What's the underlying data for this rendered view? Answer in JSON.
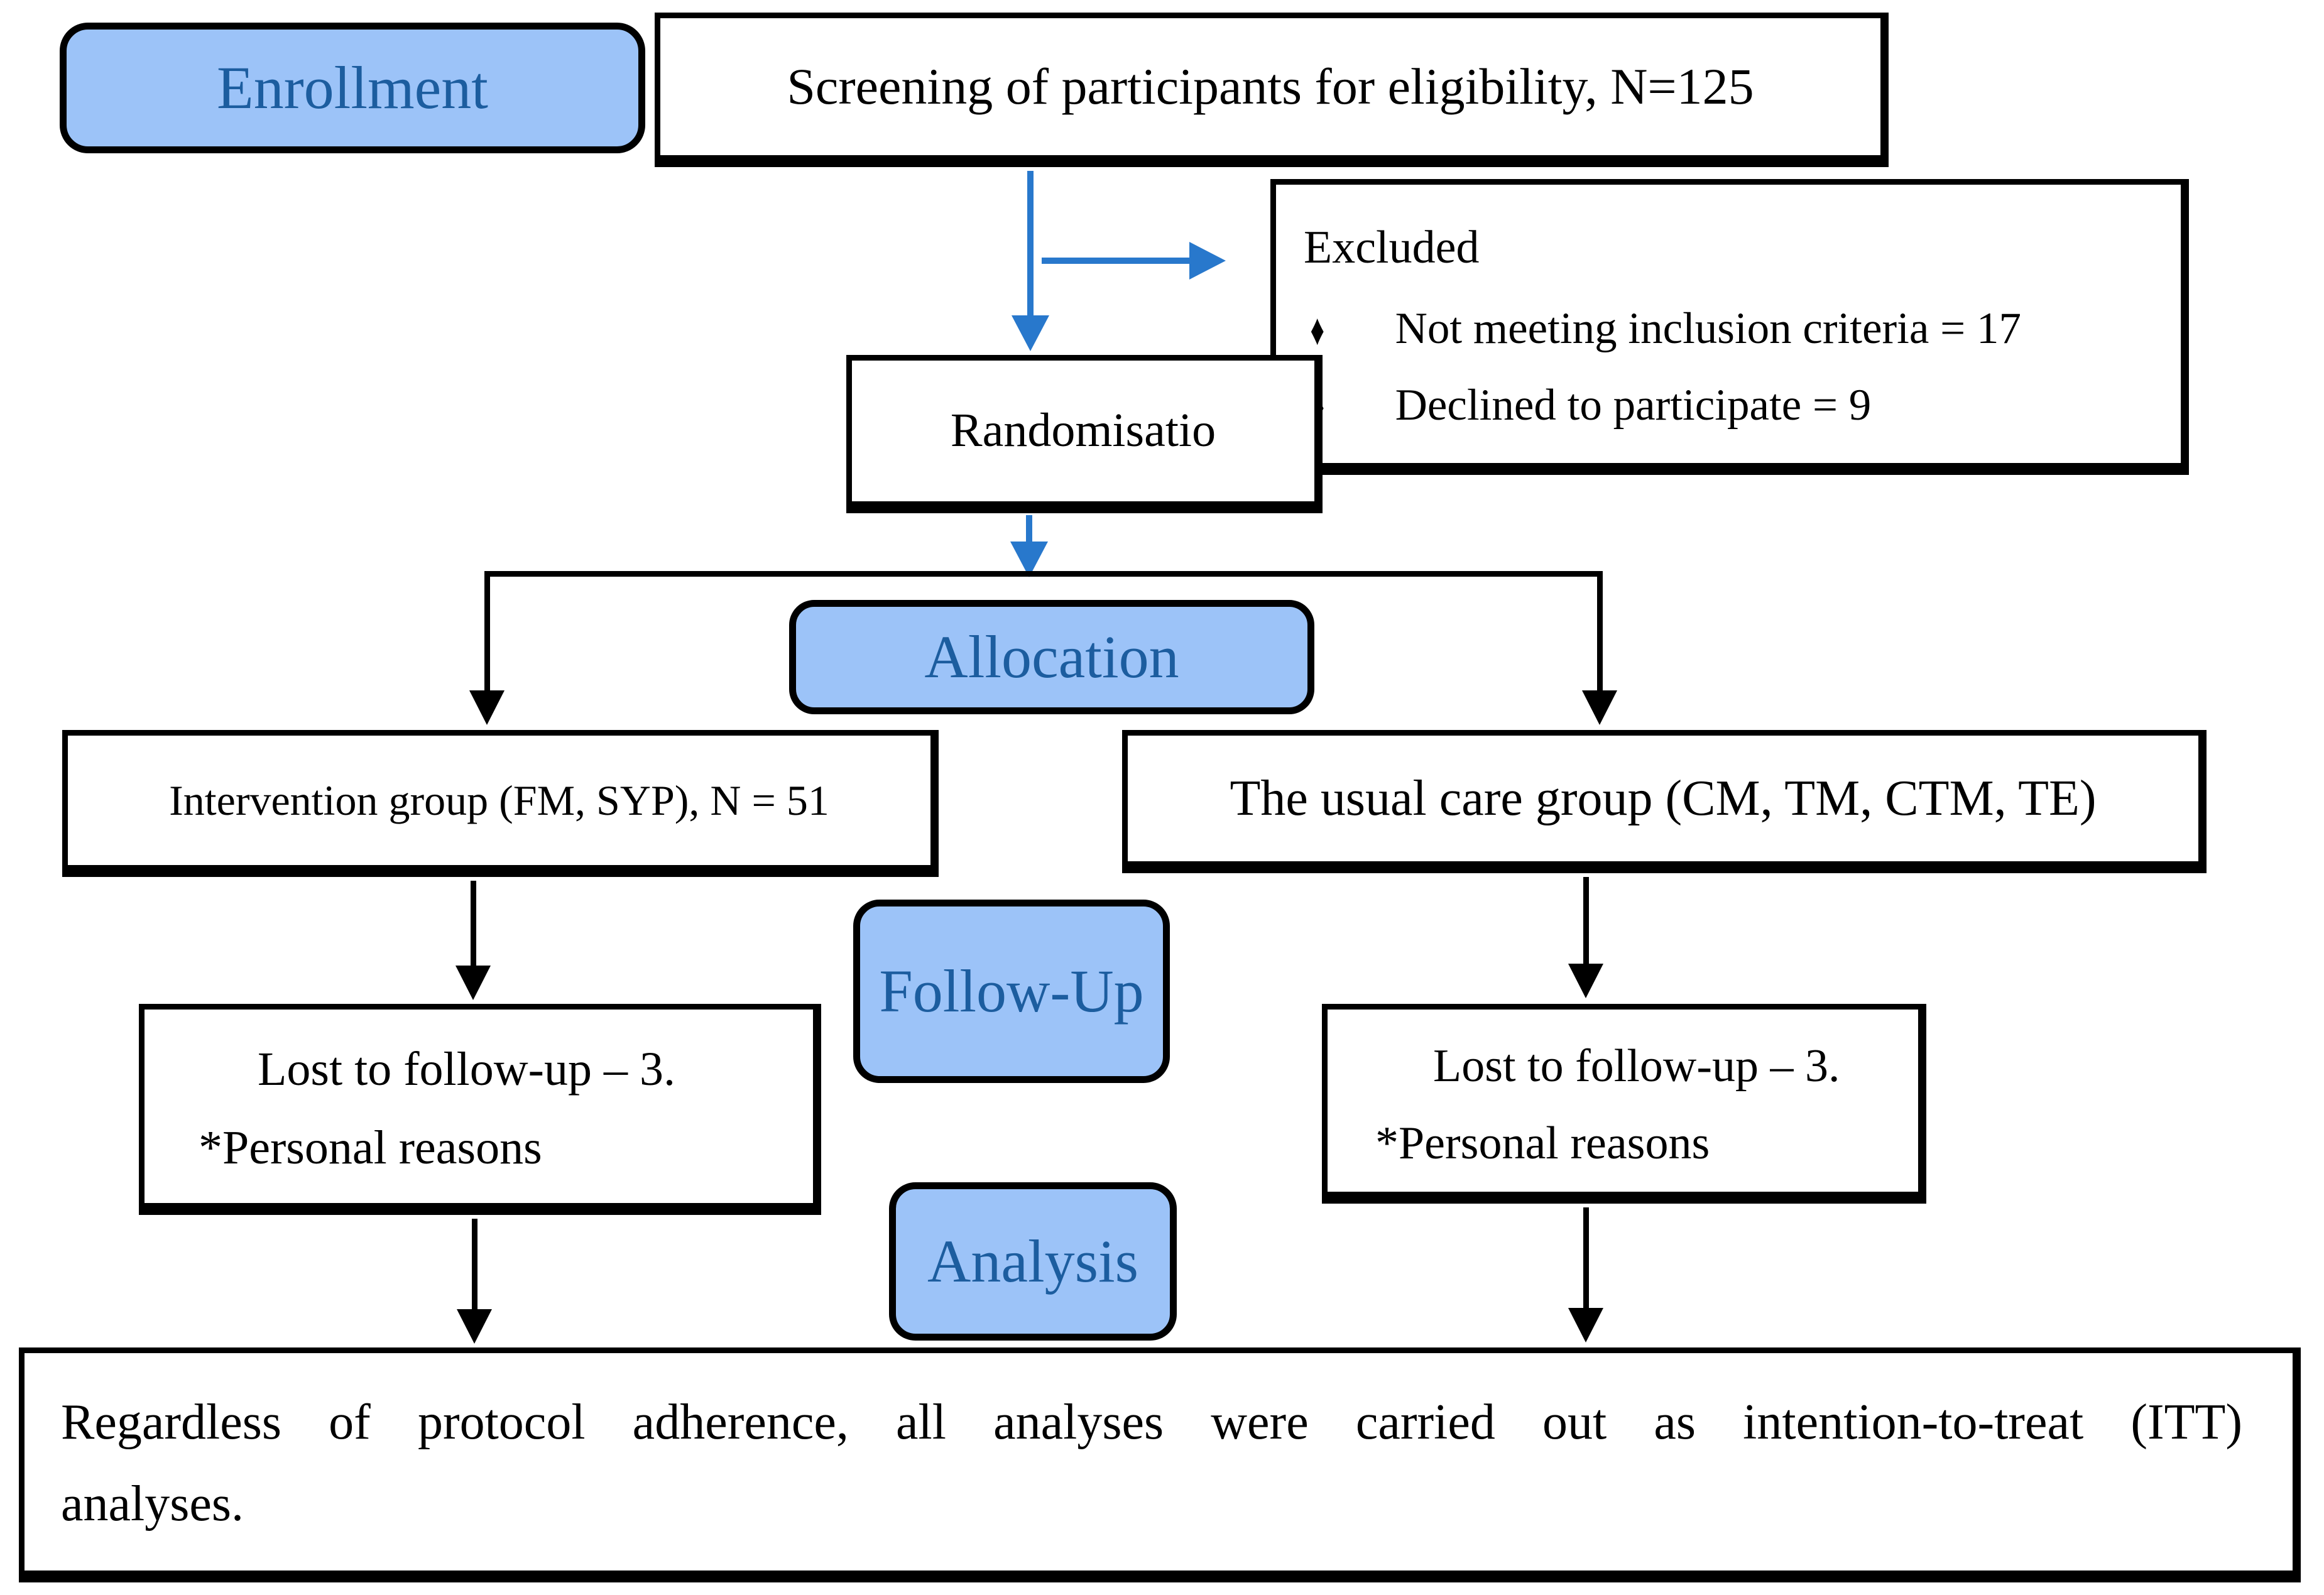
{
  "stages": {
    "enrollment": "Enrollment",
    "allocation": "Allocation",
    "follow_up": "Follow-Up",
    "analysis": "Analysis"
  },
  "boxes": {
    "screening": "Screening of participants for eligibility, N=125",
    "excluded": {
      "title": "Excluded",
      "bullet_icon": "♦",
      "items": [
        "Not meeting inclusion criteria = 17",
        "Declined to participate = 9"
      ]
    },
    "randomisation": "Randomisatio",
    "intervention_group": "Intervention group (FM, SYP), N = 51",
    "usual_care_group": "The usual care group (CM, TM, CTM, TE)",
    "lost_left": {
      "line1": "Lost to follow-up – 3.",
      "line2": "*Personal reasons"
    },
    "lost_right": {
      "line1": "Lost to follow-up – 3.",
      "line2": "*Personal reasons"
    },
    "itt": {
      "line1": "Regardless of protocol adherence, all analyses were carried out as intention-to-treat (ITT)",
      "line2": "analyses."
    }
  },
  "colors": {
    "stage_fill": "#9CC3F8",
    "stage_text": "#1C5D9F",
    "arrow_blue": "#2878CC",
    "line_black": "#000000",
    "box_background": "#FFFFFF"
  }
}
